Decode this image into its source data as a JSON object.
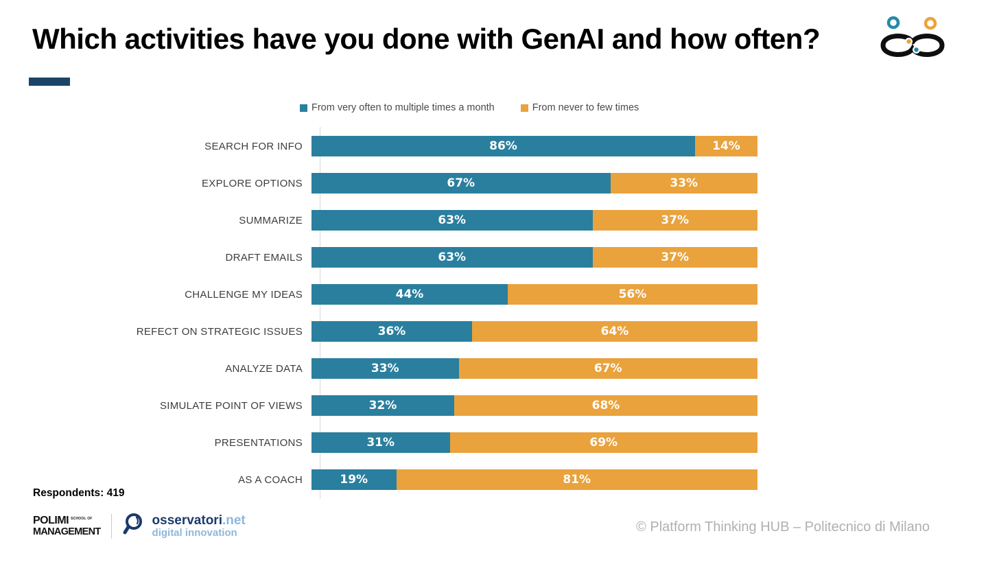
{
  "title": "Which activities have you done with GenAI and how often?",
  "accent_color": "#1b4568",
  "colors": {
    "teal": "#2a7f9e",
    "orange": "#eaa23c",
    "axis_gray": "#d8d8d8",
    "copyright_gray": "#b0b0b0"
  },
  "chart_data": {
    "type": "bar",
    "subtype": "horizontal-stacked",
    "title": "Which activities have you done with GenAI and how often?",
    "categories": [
      "SEARCH FOR INFO",
      "EXPLORE OPTIONS",
      "SUMMARIZE",
      "DRAFT EMAILS",
      "CHALLENGE MY IDEAS",
      "REFECT ON STRATEGIC ISSUES",
      "ANALYZE DATA",
      "SIMULATE POINT OF VIEWS",
      "PRESENTATIONS",
      "AS A COACH"
    ],
    "series": [
      {
        "name": "From very often to multiple times a month",
        "color": "#2a7f9e",
        "values": [
          86,
          67,
          63,
          63,
          44,
          36,
          33,
          32,
          31,
          19
        ]
      },
      {
        "name": "From never to few times",
        "color": "#eaa23c",
        "values": [
          14,
          33,
          37,
          37,
          56,
          64,
          67,
          68,
          69,
          81
        ]
      }
    ],
    "value_suffix": "%",
    "xlim": [
      0,
      100
    ],
    "grid": false,
    "legend_position": "top"
  },
  "respondents_note": "Respondents: 419",
  "footer": {
    "polimi_name": "POLIMI",
    "polimi_school": "SCHOOL OF",
    "polimi_mgmt": "MANAGEMENT",
    "osservatori_name": "osservatori",
    "osservatori_net": ".net",
    "osservatori_sub": "digital innovation",
    "copyright": "© Platform Thinking HUB – Politecnico di Milano"
  },
  "logo": {
    "name": "platform-thinking-infinity-logo",
    "teal": "#2389a8",
    "orange": "#eba33b",
    "black": "#0f0f0f"
  }
}
